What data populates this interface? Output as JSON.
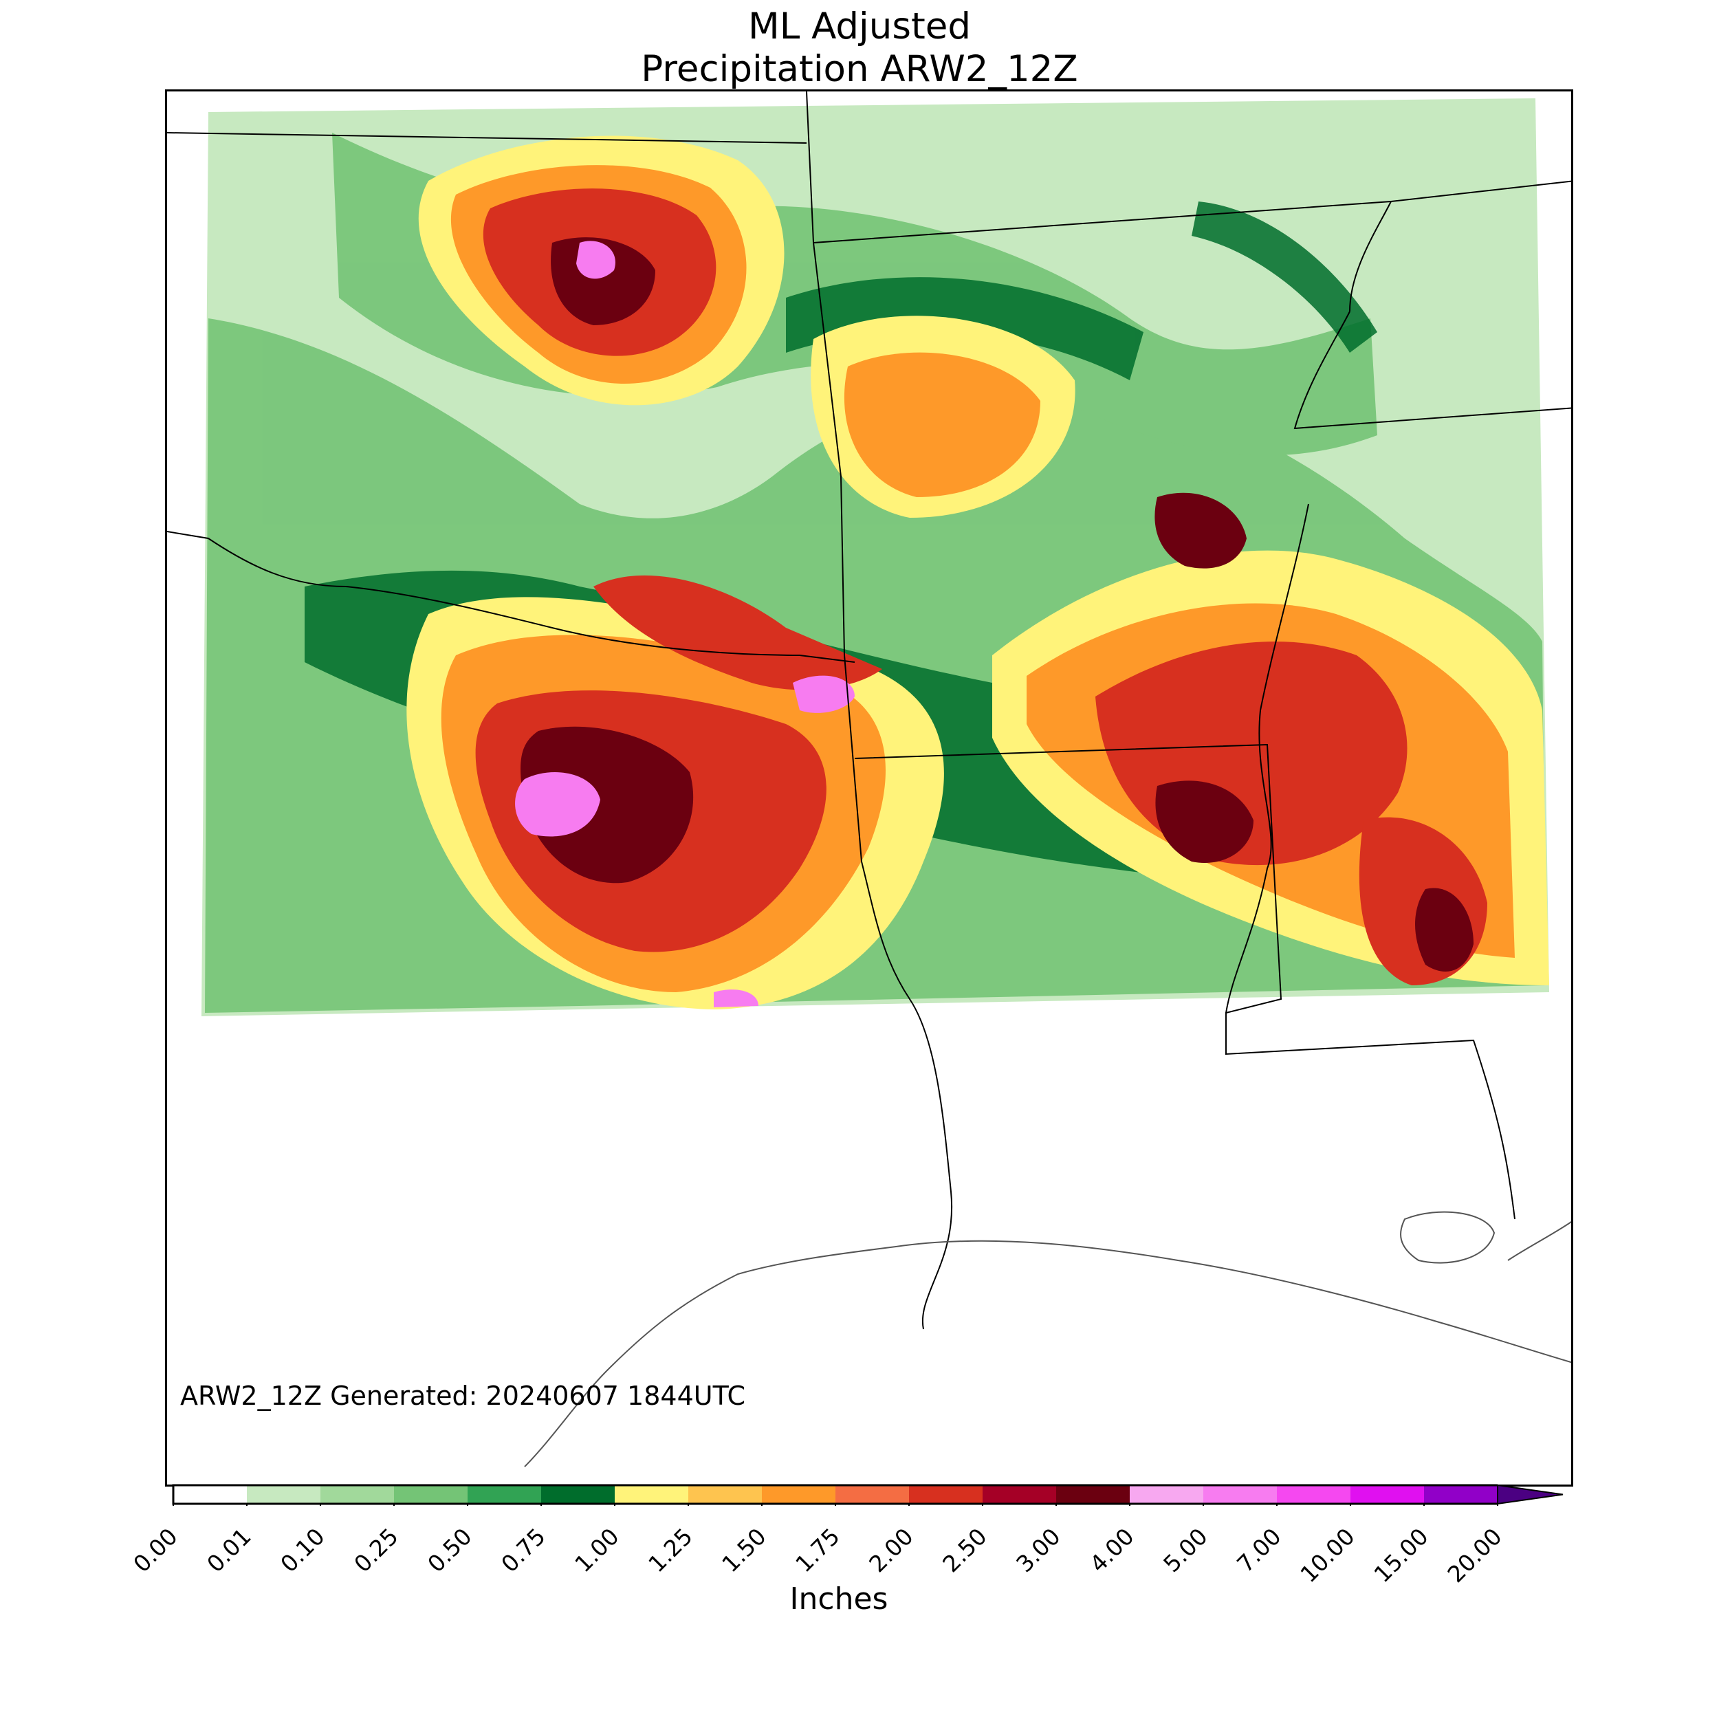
{
  "title": {
    "line1": "ML Adjusted",
    "line2": "Precipitation ARW2_12Z"
  },
  "generated_label": "ARW2_12Z Generated: 20240607 1844UTC",
  "colorbar": {
    "units_label": "Inches",
    "ticks": [
      "0.00",
      "0.01",
      "0.10",
      "0.25",
      "0.50",
      "0.75",
      "1.00",
      "1.25",
      "1.50",
      "1.75",
      "2.00",
      "2.50",
      "3.00",
      "4.00",
      "5.00",
      "7.00",
      "10.00",
      "15.00",
      "20.00"
    ],
    "colors": [
      "#ffffff",
      "#c7e9c0",
      "#a1d99b",
      "#74c476",
      "#31a354",
      "#006d2c",
      "#fff37a",
      "#fec44f",
      "#fe9929",
      "#f46d43",
      "#d7301f",
      "#a50026",
      "#6b0010",
      "#f7a8f0",
      "#f77cf0",
      "#f548f0",
      "#e010f0",
      "#9100c8"
    ],
    "extend_color": "#4b0082"
  },
  "map": {
    "precip_scale_colors": {
      "light_green": "#c7e9c0",
      "green": "#74c476",
      "dark_green": "#006d2c",
      "yellow": "#fff37a",
      "orange": "#fe9929",
      "red": "#d7301f",
      "dark_red": "#6b0010",
      "pink": "#f77cf0"
    }
  }
}
